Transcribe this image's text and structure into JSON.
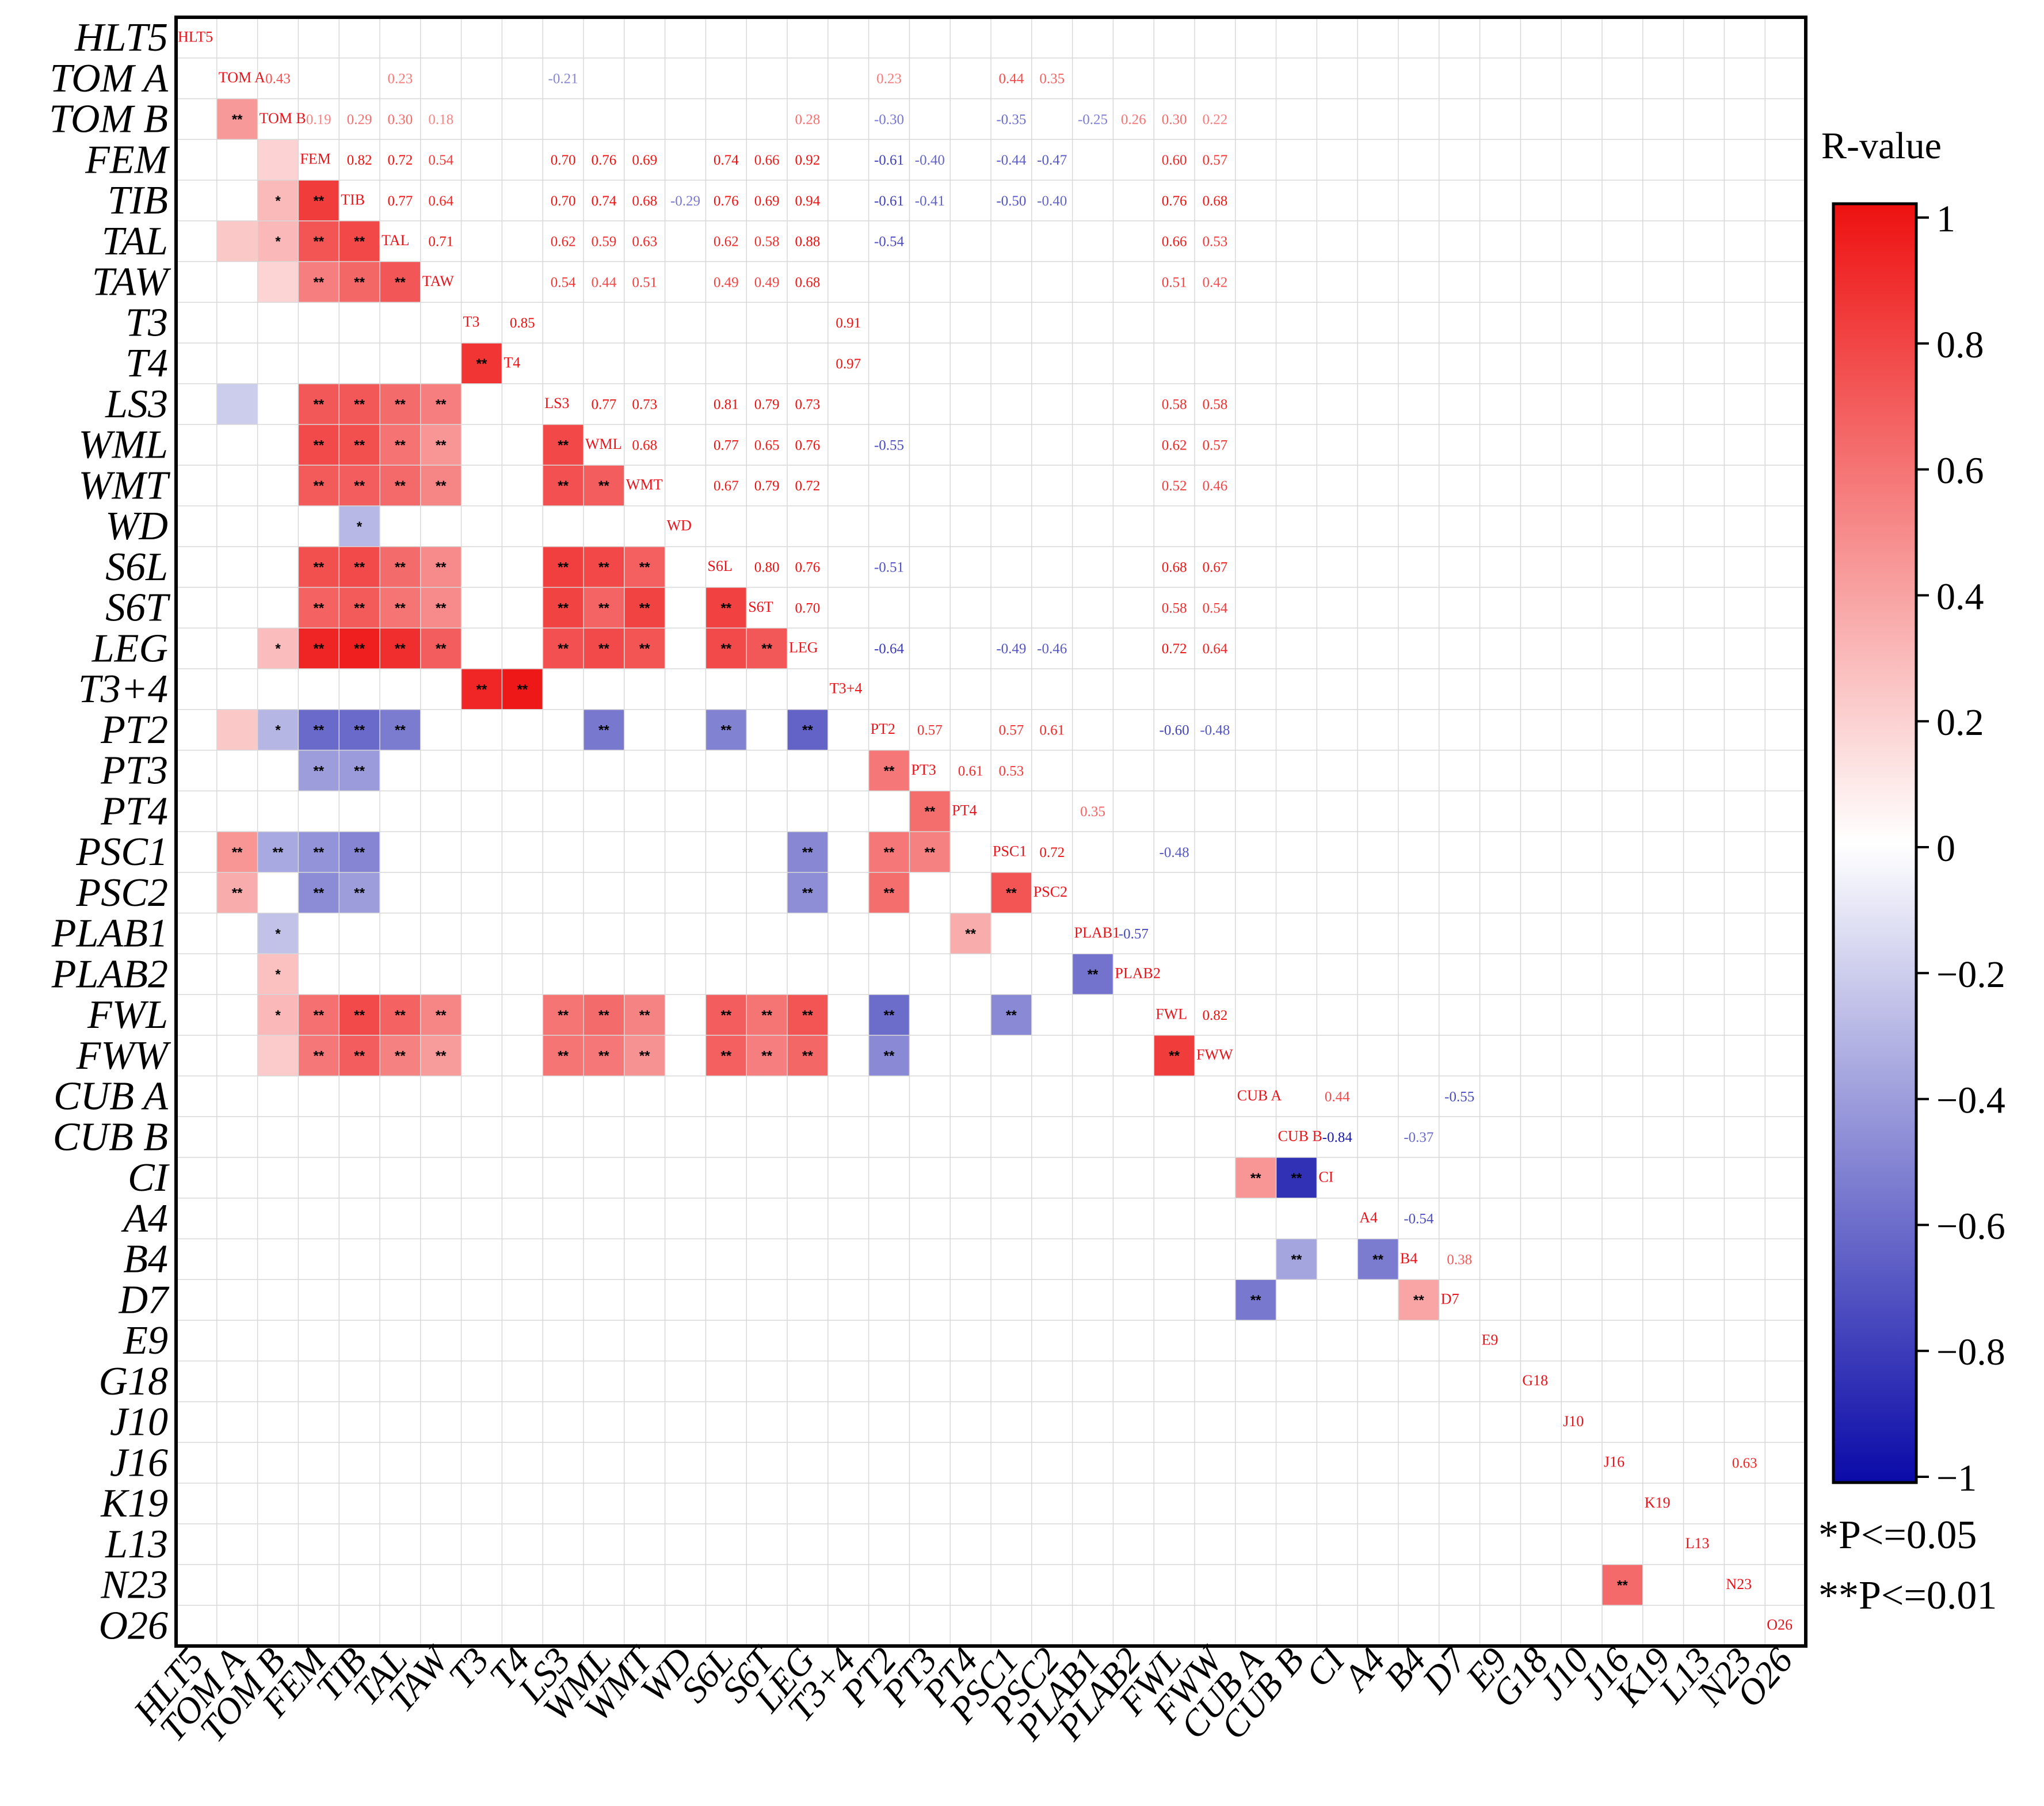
{
  "chart_data": {
    "type": "heatmap",
    "variables": [
      "HLT5",
      "TOM A",
      "TOM B",
      "FEM",
      "TIB",
      "TAL",
      "TAW",
      "T3",
      "T4",
      "LS3",
      "WML",
      "WMT",
      "WD",
      "S6L",
      "S6T",
      "LEG",
      "T3+4",
      "PT2",
      "PT3",
      "PT4",
      "PSC1",
      "PSC2",
      "PLAB1",
      "PLAB2",
      "FWL",
      "FWW",
      "CUB A",
      "CUB B",
      "CI",
      "A4",
      "B4",
      "D7",
      "E9",
      "G18",
      "J10",
      "J16",
      "K19",
      "L13",
      "N23",
      "O26"
    ],
    "correlations": [
      [
        "TOM A",
        "TOM B",
        0.43
      ],
      [
        "TOM A",
        "LS3",
        -0.21
      ],
      [
        "TOM A",
        "TAL",
        0.23
      ],
      [
        "TOM A",
        "PSC1",
        0.44
      ],
      [
        "TOM A",
        "PSC2",
        0.35
      ],
      [
        "TOM A",
        "PT2",
        0.23
      ],
      [
        "TOM B",
        "FEM",
        0.19
      ],
      [
        "TOM B",
        "TIB",
        0.29
      ],
      [
        "TOM B",
        "TAL",
        0.3
      ],
      [
        "TOM B",
        "TAW",
        0.18
      ],
      [
        "TOM B",
        "LEG",
        0.28
      ],
      [
        "TOM B",
        "PT2",
        -0.3
      ],
      [
        "TOM B",
        "PLAB1",
        -0.25
      ],
      [
        "TOM B",
        "PLAB2",
        0.26
      ],
      [
        "TOM B",
        "FWL",
        0.3
      ],
      [
        "TOM B",
        "FWW",
        0.22
      ],
      [
        "TOM B",
        "PSC1",
        -0.35
      ],
      [
        "FEM",
        "TIB",
        0.82
      ],
      [
        "FEM",
        "TAL",
        0.72
      ],
      [
        "FEM",
        "TAW",
        0.54
      ],
      [
        "FEM",
        "LS3",
        0.7
      ],
      [
        "FEM",
        "WML",
        0.76
      ],
      [
        "FEM",
        "WMT",
        0.69
      ],
      [
        "FEM",
        "S6L",
        0.74
      ],
      [
        "FEM",
        "S6T",
        0.66
      ],
      [
        "FEM",
        "LEG",
        0.92
      ],
      [
        "FEM",
        "PT2",
        -0.61
      ],
      [
        "FEM",
        "PT3",
        -0.4
      ],
      [
        "FEM",
        "PSC1",
        -0.44
      ],
      [
        "FEM",
        "PSC2",
        -0.47
      ],
      [
        "FEM",
        "FWL",
        0.6
      ],
      [
        "FEM",
        "FWW",
        0.57
      ],
      [
        "TIB",
        "TAL",
        0.77
      ],
      [
        "TIB",
        "TAW",
        0.64
      ],
      [
        "TIB",
        "LS3",
        0.7
      ],
      [
        "TIB",
        "WML",
        0.74
      ],
      [
        "TIB",
        "WMT",
        0.68
      ],
      [
        "TIB",
        "WD",
        -0.29
      ],
      [
        "TIB",
        "S6L",
        0.76
      ],
      [
        "TIB",
        "S6T",
        0.69
      ],
      [
        "TIB",
        "LEG",
        0.94
      ],
      [
        "TIB",
        "PT2",
        -0.61
      ],
      [
        "TIB",
        "PT3",
        -0.41
      ],
      [
        "TIB",
        "PSC1",
        -0.5
      ],
      [
        "TIB",
        "PSC2",
        -0.4
      ],
      [
        "TIB",
        "FWL",
        0.76
      ],
      [
        "TIB",
        "FWW",
        0.68
      ],
      [
        "TAL",
        "TAW",
        0.71
      ],
      [
        "TAL",
        "LS3",
        0.62
      ],
      [
        "TAL",
        "WML",
        0.59
      ],
      [
        "TAL",
        "WMT",
        0.63
      ],
      [
        "TAL",
        "S6L",
        0.62
      ],
      [
        "TAL",
        "S6T",
        0.58
      ],
      [
        "TAL",
        "LEG",
        0.88
      ],
      [
        "TAL",
        "PT2",
        -0.54
      ],
      [
        "TAL",
        "FWL",
        0.66
      ],
      [
        "TAL",
        "FWW",
        0.53
      ],
      [
        "TAW",
        "LS3",
        0.54
      ],
      [
        "TAW",
        "WML",
        0.44
      ],
      [
        "TAW",
        "WMT",
        0.51
      ],
      [
        "TAW",
        "S6L",
        0.49
      ],
      [
        "TAW",
        "S6T",
        0.49
      ],
      [
        "TAW",
        "LEG",
        0.68
      ],
      [
        "TAW",
        "FWL",
        0.51
      ],
      [
        "TAW",
        "FWW",
        0.42
      ],
      [
        "T3",
        "T4",
        0.85
      ],
      [
        "T3",
        "T3+4",
        0.91
      ],
      [
        "T4",
        "T3+4",
        0.97
      ],
      [
        "LS3",
        "WML",
        0.77
      ],
      [
        "LS3",
        "WMT",
        0.73
      ],
      [
        "LS3",
        "S6L",
        0.81
      ],
      [
        "LS3",
        "S6T",
        0.79
      ],
      [
        "LS3",
        "LEG",
        0.73
      ],
      [
        "LS3",
        "FWL",
        0.58
      ],
      [
        "LS3",
        "FWW",
        0.58
      ],
      [
        "WML",
        "WMT",
        0.68
      ],
      [
        "WML",
        "S6L",
        0.77
      ],
      [
        "WML",
        "S6T",
        0.65
      ],
      [
        "WML",
        "LEG",
        0.76
      ],
      [
        "WML",
        "PT2",
        -0.55
      ],
      [
        "WML",
        "FWL",
        0.62
      ],
      [
        "WML",
        "FWW",
        0.57
      ],
      [
        "WMT",
        "S6L",
        0.67
      ],
      [
        "WMT",
        "S6T",
        0.79
      ],
      [
        "WMT",
        "LEG",
        0.72
      ],
      [
        "WMT",
        "FWL",
        0.52
      ],
      [
        "WMT",
        "FWW",
        0.46
      ],
      [
        "S6L",
        "S6T",
        0.8
      ],
      [
        "S6L",
        "LEG",
        0.76
      ],
      [
        "S6L",
        "PT2",
        -0.51
      ],
      [
        "S6L",
        "FWL",
        0.68
      ],
      [
        "S6L",
        "FWW",
        0.67
      ],
      [
        "S6T",
        "LEG",
        0.7
      ],
      [
        "S6T",
        "FWL",
        0.58
      ],
      [
        "S6T",
        "FWW",
        0.54
      ],
      [
        "LEG",
        "PT2",
        -0.64
      ],
      [
        "LEG",
        "PSC1",
        -0.49
      ],
      [
        "LEG",
        "PSC2",
        -0.46
      ],
      [
        "LEG",
        "FWL",
        0.72
      ],
      [
        "LEG",
        "FWW",
        0.64
      ],
      [
        "PT2",
        "PT3",
        0.57
      ],
      [
        "PT2",
        "PSC1",
        0.57
      ],
      [
        "PT2",
        "PSC2",
        0.61
      ],
      [
        "PT2",
        "FWL",
        -0.6
      ],
      [
        "PT2",
        "FWW",
        -0.48
      ],
      [
        "PT3",
        "PT4",
        0.61
      ],
      [
        "PT3",
        "PSC1",
        0.53
      ],
      [
        "PT4",
        "PLAB1",
        0.35
      ],
      [
        "PSC1",
        "PSC2",
        0.72
      ],
      [
        "PSC1",
        "FWL",
        -0.48
      ],
      [
        "PLAB1",
        "PLAB2",
        -0.57
      ],
      [
        "FWL",
        "FWW",
        0.82
      ],
      [
        "CUB A",
        "CI",
        0.44
      ],
      [
        "CUB A",
        "D7",
        -0.55
      ],
      [
        "CUB B",
        "CI",
        -0.84
      ],
      [
        "CUB B",
        "B4",
        -0.37
      ],
      [
        "A4",
        "B4",
        -0.54
      ],
      [
        "B4",
        "D7",
        0.38
      ],
      [
        "J16",
        "N23",
        0.63
      ]
    ],
    "significance_legend": [
      "*P<=0.05",
      "**P<=0.01"
    ],
    "colorbar": {
      "label": "R-value",
      "min": -1,
      "max": 1,
      "ticks": [
        "1",
        "0.8",
        "0.6",
        "0.4",
        "0.2",
        "0",
        "−0.2",
        "−0.4",
        "−0.6",
        "−0.8",
        "−1"
      ],
      "colors": {
        "positive": "#ee1111",
        "zero": "#ffffff",
        "negative": "#0a0aa8"
      }
    }
  }
}
